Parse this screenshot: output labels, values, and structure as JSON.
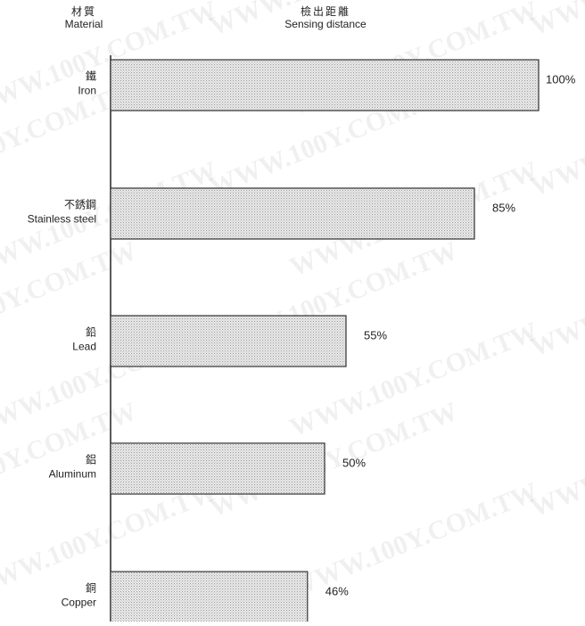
{
  "chart_data": {
    "type": "bar",
    "orientation": "horizontal",
    "column_headers": {
      "category": {
        "zh": "材質",
        "en": "Material"
      },
      "value": {
        "zh": "檢出距離",
        "en": "Sensing distance"
      }
    },
    "categories": [
      {
        "zh": "鐵",
        "en": "Iron"
      },
      {
        "zh": "不銹鋼",
        "en": "Stainless steel"
      },
      {
        "zh": "鉛",
        "en": "Lead"
      },
      {
        "zh": "鋁",
        "en": "Aluminum"
      },
      {
        "zh": "銅",
        "en": "Copper"
      }
    ],
    "values": [
      100,
      85,
      55,
      50,
      46
    ],
    "value_labels": [
      "100%",
      "85%",
      "55%",
      "50%",
      "46%"
    ],
    "unit": "%",
    "xlim": [
      0,
      100
    ],
    "grid": false,
    "legend": "none",
    "bar_fill": "#e4e4e4",
    "bar_stroke": "#333333"
  },
  "watermark": "WWW.100Y.COM.TW"
}
